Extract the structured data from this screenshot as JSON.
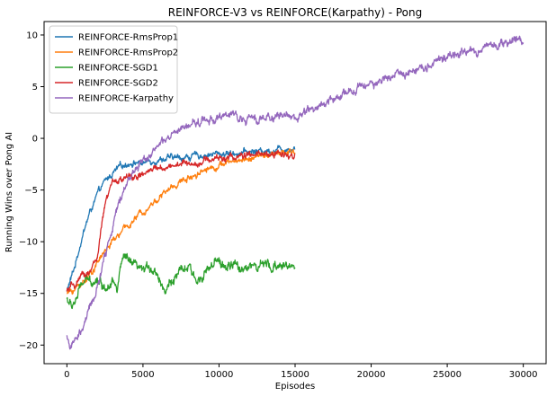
{
  "chart_data": {
    "type": "line",
    "title": "REINFORCE-V3 vs REINFORCE(Karpathy) - Pong",
    "xlabel": "Episodes",
    "ylabel": "Running Wins over Pong AI",
    "xlim": [
      -1500,
      31500
    ],
    "ylim": [
      -21.8,
      11.3
    ],
    "xticks": [
      0,
      5000,
      10000,
      15000,
      20000,
      25000,
      30000
    ],
    "yticks": [
      -20,
      -15,
      -10,
      -5,
      0,
      5,
      10
    ],
    "grid": false,
    "legend_position": "upper-left",
    "series": [
      {
        "name": "REINFORCE-RmsProp1",
        "color": "#1f77b4",
        "noise": 0.22,
        "x": [
          0,
          500,
          1000,
          1500,
          2000,
          2500,
          3000,
          3500,
          4000,
          4500,
          5000,
          6000,
          7000,
          8000,
          9000,
          10000,
          11000,
          12000,
          13000,
          14000,
          15000
        ],
        "y": [
          -14.8,
          -12.5,
          -9.5,
          -7.2,
          -5.5,
          -4.2,
          -3.4,
          -2.8,
          -2.4,
          -2.3,
          -2.4,
          -2.0,
          -1.9,
          -1.8,
          -1.6,
          -1.5,
          -1.4,
          -1.3,
          -1.2,
          -1.0,
          -0.9
        ]
      },
      {
        "name": "REINFORCE-RmsProp2",
        "color": "#ff7f0e",
        "noise": 0.22,
        "x": [
          0,
          500,
          1000,
          1500,
          2000,
          2500,
          3000,
          3500,
          4000,
          4500,
          5000,
          5500,
          6000,
          7000,
          8000,
          9000,
          10000,
          11000,
          12000,
          13000,
          14000,
          15000
        ],
        "y": [
          -15.0,
          -14.6,
          -14.0,
          -13.2,
          -12.0,
          -10.9,
          -10.0,
          -9.2,
          -8.5,
          -7.8,
          -7.0,
          -6.4,
          -5.8,
          -4.6,
          -3.8,
          -3.0,
          -2.6,
          -2.2,
          -1.9,
          -1.7,
          -1.5,
          -1.3
        ]
      },
      {
        "name": "REINFORCE-SGD1",
        "color": "#2ca02c",
        "noise": 0.35,
        "x": [
          0,
          300,
          700,
          1000,
          1500,
          2000,
          2500,
          3000,
          3300,
          3500,
          3800,
          4000,
          4500,
          5000,
          5500,
          6000,
          6500,
          7000,
          7500,
          8000,
          8500,
          9000,
          9500,
          10000,
          10500,
          11000,
          11500,
          12000,
          12500,
          13000,
          13500,
          14000,
          14500,
          15000
        ],
        "y": [
          -15.5,
          -16.3,
          -15.3,
          -14.0,
          -13.8,
          -13.5,
          -14.5,
          -13.3,
          -15.0,
          -12.5,
          -11.5,
          -12.0,
          -12.5,
          -13.0,
          -12.3,
          -13.2,
          -14.8,
          -13.5,
          -13.0,
          -12.5,
          -14.0,
          -12.8,
          -12.5,
          -12.0,
          -12.5,
          -12.3,
          -12.8,
          -12.0,
          -12.6,
          -12.2,
          -12.8,
          -12.0,
          -12.5,
          -12.3
        ]
      },
      {
        "name": "REINFORCE-SGD2",
        "color": "#d62728",
        "noise": 0.25,
        "x": [
          0,
          500,
          1000,
          1500,
          2000,
          2500,
          3000,
          3500,
          4000,
          4500,
          5000,
          5500,
          6000,
          7000,
          8000,
          9000,
          10000,
          11000,
          12000,
          13000,
          14000,
          15000
        ],
        "y": [
          -14.8,
          -14.2,
          -13.5,
          -12.8,
          -11.5,
          -6.5,
          -4.3,
          -4.0,
          -3.8,
          -3.7,
          -3.6,
          -3.2,
          -2.9,
          -2.6,
          -2.4,
          -2.2,
          -1.9,
          -1.8,
          -1.7,
          -1.6,
          -1.5,
          -1.5
        ]
      },
      {
        "name": "REINFORCE-Karpathy",
        "color": "#9467bd",
        "noise": 0.3,
        "x": [
          0,
          200,
          500,
          1000,
          1500,
          2000,
          2500,
          3000,
          3500,
          4000,
          5000,
          6000,
          7000,
          8000,
          9000,
          10000,
          11000,
          12000,
          13000,
          14000,
          15000,
          16000,
          17000,
          18000,
          19000,
          20000,
          21000,
          22000,
          23000,
          24000,
          25000,
          26000,
          27000,
          28000,
          29000,
          30000
        ],
        "y": [
          -19.0,
          -20.2,
          -19.8,
          -18.5,
          -16.5,
          -14.5,
          -11.5,
          -8.5,
          -6.0,
          -4.0,
          -2.0,
          -0.8,
          0.3,
          1.2,
          1.8,
          2.0,
          2.2,
          1.8,
          2.0,
          2.3,
          2.0,
          2.8,
          3.5,
          4.0,
          4.8,
          5.2,
          5.8,
          6.3,
          6.8,
          7.3,
          7.9,
          8.2,
          8.6,
          9.0,
          9.3,
          9.6
        ]
      }
    ]
  }
}
